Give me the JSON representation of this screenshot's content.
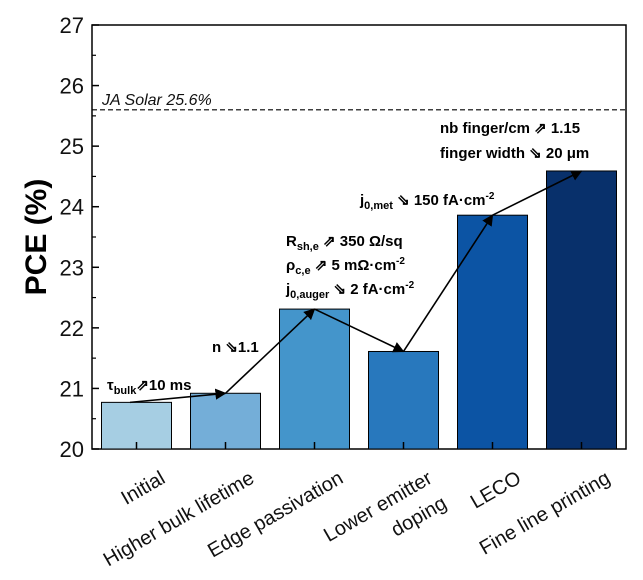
{
  "chart_data": {
    "type": "bar",
    "title": "",
    "xlabel": "",
    "ylabel": "PCE (%)",
    "ylim": [
      20,
      27
    ],
    "yticks": [
      "20",
      "21",
      "22",
      "23",
      "24",
      "25",
      "26",
      "27"
    ],
    "categories": [
      [
        "Initial"
      ],
      [
        "Higher bulk lifetime"
      ],
      [
        "Edge passivation"
      ],
      [
        "Lower emitter",
        "doping"
      ],
      [
        "LECO"
      ],
      [
        "Fine line printing"
      ]
    ],
    "values": [
      20.77,
      20.92,
      22.31,
      21.61,
      23.86,
      24.59
    ],
    "bar_colors": [
      "#a6cee3",
      "#74aed8",
      "#4495cb",
      "#2878bd",
      "#0c54a4",
      "#08306b"
    ],
    "reference_line": {
      "label": "JA Solar 25.6%",
      "value": 25.6
    },
    "annotations": [
      {
        "lines": [
          {
            "parts": [
              {
                "t": "τ"
              },
              {
                "t": "bulk",
                "sub": true
              },
              {
                "t": "⇗10 ms"
              }
            ]
          }
        ]
      },
      {
        "lines": [
          {
            "parts": [
              {
                "t": "n ⇘1.1"
              }
            ]
          }
        ]
      },
      {
        "lines": [
          {
            "parts": [
              {
                "t": "R"
              },
              {
                "t": "sh,e",
                "sub": true
              },
              {
                "t": " ⇗ 350 Ω/sq"
              }
            ]
          },
          {
            "parts": [
              {
                "t": "ρ"
              },
              {
                "t": "c,e",
                "sub": true
              },
              {
                "t": " ⇗ 5 mΩ·cm"
              },
              {
                "t": "-2",
                "sup": true
              }
            ]
          },
          {
            "parts": [
              {
                "t": "j"
              },
              {
                "t": "0,auger",
                "sub": true
              },
              {
                "t": " ⇘ 2 fA·cm"
              },
              {
                "t": "-2",
                "sup": true
              }
            ]
          }
        ]
      },
      {
        "lines": [
          {
            "parts": [
              {
                "t": "j"
              },
              {
                "t": "0,met",
                "sub": true
              },
              {
                "t": " ⇘ 150 fA·cm"
              },
              {
                "t": "-2",
                "sup": true
              }
            ]
          }
        ]
      },
      {
        "lines": [
          {
            "parts": [
              {
                "t": "nb finger/cm ⇗ 1.15"
              }
            ]
          },
          {
            "parts": [
              {
                "t": "finger width ⇘ 20 μm"
              }
            ]
          }
        ]
      }
    ],
    "grid": false,
    "legend": "none"
  }
}
